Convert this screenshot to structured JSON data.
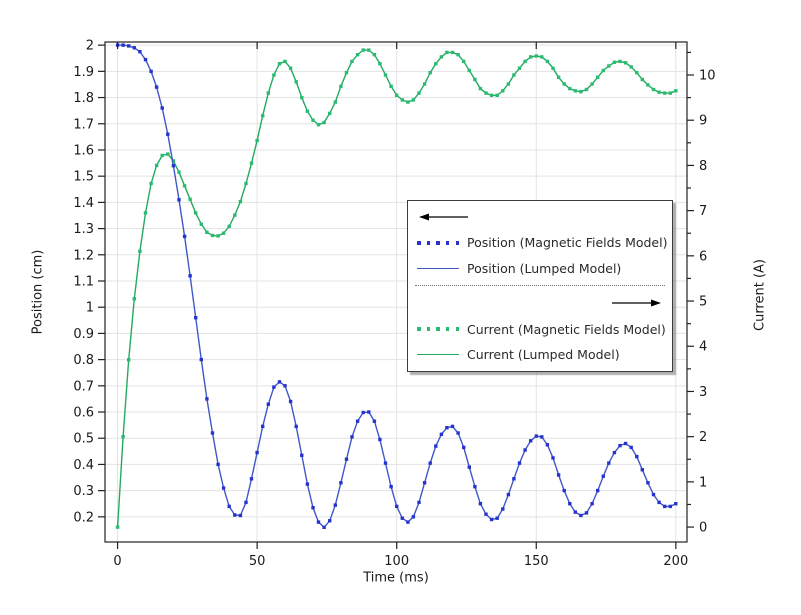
{
  "colors": {
    "position_dotted": "#2633cc",
    "position_solid": "#3f58c9",
    "current_dotted": "#29bb6f",
    "current_solid": "#24aa60",
    "grid": "#e3e3e3",
    "axis": "#212121",
    "legend_border": "#3c3c3c",
    "arrow": "#000000"
  },
  "chart_data": {
    "type": "line",
    "title": "",
    "xlabel": "Time (ms)",
    "ylabel_left": "Position (cm)",
    "ylabel_right": "Current (A)",
    "grid": true,
    "legend_position": "middle-right",
    "xlim": [
      -4.5,
      204
    ],
    "ylim_left": [
      0.104,
      2.012
    ],
    "ylim_right": [
      -0.33,
      10.73
    ],
    "x_ticks": {
      "values": [
        0,
        50,
        100,
        150,
        200
      ],
      "labels": [
        "0",
        "50",
        "100",
        "150",
        "200"
      ]
    },
    "y_ticks_left": {
      "values": [
        2.0,
        1.9,
        1.8,
        1.7,
        1.6,
        1.5,
        1.4,
        1.3,
        1.2,
        1.1,
        1.0,
        0.9,
        0.8,
        0.7,
        0.6,
        0.5,
        0.4,
        0.3,
        0.2
      ],
      "labels": [
        "2",
        "1.9",
        "1.8",
        "1.7",
        "1.6",
        "1.5",
        "1.4",
        "1.3",
        "1.2",
        "1.1",
        "1",
        "0.9",
        "0.8",
        "0.7",
        "0.6",
        "0.5",
        "0.4",
        "0.3",
        "0.2"
      ]
    },
    "y_ticks_right": {
      "values": [
        10,
        9,
        8,
        7,
        6,
        5,
        4,
        3,
        2,
        1,
        0
      ],
      "labels": [
        "10",
        "9",
        "8",
        "7",
        "6",
        "5",
        "4",
        "3",
        "2",
        "1",
        "0"
      ]
    },
    "y_minor_ticks_right": [
      0.5,
      1.5,
      2.5,
      3.5,
      4.5,
      5.5,
      6.5,
      7.5,
      8.5,
      9.5,
      10.5
    ],
    "x": [
      0,
      2,
      4,
      6,
      8,
      10,
      12,
      14,
      16,
      18,
      20,
      22,
      24,
      26,
      28,
      30,
      32,
      34,
      36,
      38,
      40,
      42,
      44,
      46,
      48,
      50,
      52,
      54,
      56,
      58,
      60,
      62,
      64,
      66,
      68,
      70,
      72,
      74,
      76,
      78,
      80,
      82,
      84,
      86,
      88,
      90,
      92,
      94,
      96,
      98,
      100,
      102,
      104,
      106,
      108,
      110,
      112,
      114,
      116,
      118,
      120,
      122,
      124,
      126,
      128,
      130,
      132,
      134,
      136,
      138,
      140,
      142,
      144,
      146,
      148,
      150,
      152,
      154,
      156,
      158,
      160,
      162,
      164,
      166,
      168,
      170,
      172,
      174,
      176,
      178,
      180,
      182,
      184,
      186,
      188,
      190,
      192,
      194,
      196,
      198,
      200
    ],
    "position_values": [
      2.0,
      2.0,
      1.997,
      1.99,
      1.975,
      1.945,
      1.9,
      1.84,
      1.76,
      1.66,
      1.54,
      1.41,
      1.27,
      1.12,
      0.96,
      0.8,
      0.65,
      0.52,
      0.4,
      0.31,
      0.24,
      0.207,
      0.205,
      0.255,
      0.345,
      0.445,
      0.545,
      0.63,
      0.695,
      0.715,
      0.7,
      0.64,
      0.545,
      0.435,
      0.325,
      0.235,
      0.18,
      0.16,
      0.185,
      0.245,
      0.33,
      0.42,
      0.505,
      0.565,
      0.598,
      0.6,
      0.565,
      0.495,
      0.405,
      0.315,
      0.24,
      0.195,
      0.18,
      0.2,
      0.255,
      0.33,
      0.405,
      0.47,
      0.515,
      0.54,
      0.545,
      0.52,
      0.465,
      0.39,
      0.315,
      0.25,
      0.21,
      0.19,
      0.195,
      0.23,
      0.285,
      0.345,
      0.405,
      0.455,
      0.49,
      0.508,
      0.505,
      0.475,
      0.425,
      0.36,
      0.3,
      0.25,
      0.218,
      0.205,
      0.215,
      0.25,
      0.3,
      0.355,
      0.405,
      0.445,
      0.472,
      0.48,
      0.465,
      0.43,
      0.38,
      0.33,
      0.285,
      0.255,
      0.24,
      0.24,
      0.25
    ],
    "current_values": [
      0.0,
      2.0,
      3.7,
      5.05,
      6.1,
      6.95,
      7.6,
      8.0,
      8.22,
      8.25,
      8.1,
      7.85,
      7.55,
      7.25,
      6.95,
      6.7,
      6.52,
      6.45,
      6.44,
      6.5,
      6.65,
      6.9,
      7.2,
      7.6,
      8.05,
      8.55,
      9.1,
      9.6,
      10.0,
      10.25,
      10.3,
      10.15,
      9.85,
      9.5,
      9.2,
      9.0,
      8.9,
      8.95,
      9.15,
      9.4,
      9.75,
      10.05,
      10.3,
      10.45,
      10.55,
      10.55,
      10.45,
      10.25,
      10.0,
      9.75,
      9.55,
      9.45,
      9.4,
      9.45,
      9.6,
      9.8,
      10.05,
      10.25,
      10.4,
      10.5,
      10.5,
      10.45,
      10.3,
      10.1,
      9.9,
      9.7,
      9.6,
      9.55,
      9.55,
      9.65,
      9.8,
      10.0,
      10.15,
      10.3,
      10.4,
      10.42,
      10.4,
      10.3,
      10.15,
      9.95,
      9.8,
      9.7,
      9.65,
      9.63,
      9.68,
      9.8,
      9.95,
      10.1,
      10.2,
      10.28,
      10.3,
      10.27,
      10.18,
      10.05,
      9.9,
      9.78,
      9.68,
      9.62,
      9.6,
      9.6,
      9.65
    ],
    "series": [
      {
        "id": "position-magnetic-fields",
        "name": "Position (Magnetic Fields Model)",
        "axis": "left",
        "style": "dotted",
        "color_key": "position_dotted",
        "values_key": "position_values"
      },
      {
        "id": "position-lumped",
        "name": "Position (Lumped Model)",
        "axis": "left",
        "style": "solid",
        "color_key": "position_solid",
        "values_key": "position_values"
      },
      {
        "id": "current-magnetic-fields",
        "name": "Current (Magnetic Fields Model)",
        "axis": "right",
        "style": "dotted",
        "color_key": "current_dotted",
        "values_key": "current_values"
      },
      {
        "id": "current-lumped",
        "name": "Current (Lumped Model)",
        "axis": "right",
        "style": "solid",
        "color_key": "current_solid",
        "values_key": "current_values"
      }
    ],
    "legend_rows": [
      {
        "type": "arrow-left"
      },
      {
        "type": "series",
        "series": "position-magnetic-fields"
      },
      {
        "type": "series",
        "series": "position-lumped"
      },
      {
        "type": "divider"
      },
      {
        "type": "arrow-right"
      },
      {
        "type": "series",
        "series": "current-magnetic-fields"
      },
      {
        "type": "series",
        "series": "current-lumped"
      }
    ]
  }
}
